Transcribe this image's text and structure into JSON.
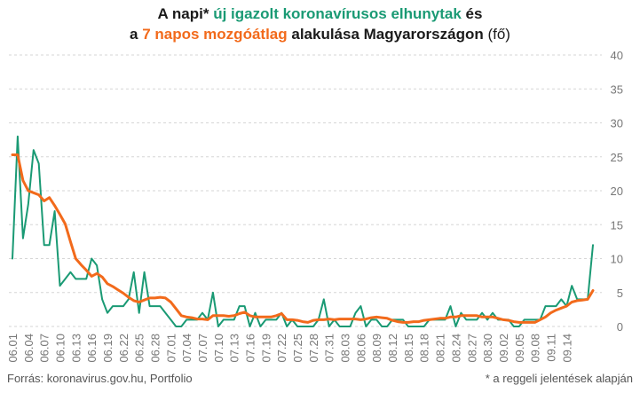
{
  "title": {
    "line1_a": "A napi* ",
    "line1_b": "új igazolt koronavírusos elhunytak",
    "line1_c": " és",
    "line2_a": "a ",
    "line2_b": "7 napos mozgóátlag",
    "line2_c": " alakulása Magyarországon ",
    "line2_d": "(fő)"
  },
  "footer": {
    "source": "Forrás: koronavirus.gov.hu, Portfolio",
    "note": "* a reggeli jelentések alapján"
  },
  "colors": {
    "daily": "#1a9a74",
    "average": "#f26a1b",
    "grid": "#d6d6d6",
    "tick": "#777777"
  },
  "chart_data": {
    "type": "line",
    "ylim": [
      0,
      40
    ],
    "yticks": [
      0,
      5,
      10,
      15,
      20,
      25,
      30,
      35,
      40
    ],
    "y_axis_position": "right",
    "grid": true,
    "x_tick_labels": [
      "06.01",
      "06.04",
      "06.07",
      "06.10",
      "06.13",
      "06.16",
      "06.19",
      "06.22",
      "06.25",
      "06.28",
      "07.01",
      "07.04",
      "07.07",
      "07.10",
      "07.13",
      "07.16",
      "07.19",
      "07.22",
      "07.25",
      "07.28",
      "07.31",
      "08.03",
      "08.06",
      "08.09",
      "08.12",
      "08.15",
      "08.18",
      "08.21",
      "08.24",
      "08.27",
      "08.30",
      "09.02",
      "09.05",
      "09.08",
      "09.11",
      "09.14"
    ],
    "series": [
      {
        "key": "daily",
        "values": [
          10,
          28,
          13,
          18,
          26,
          24,
          12,
          12,
          17,
          6,
          7,
          8,
          7,
          7,
          7,
          10,
          9,
          4,
          2,
          3,
          3,
          3,
          4,
          8,
          2,
          8,
          3,
          3,
          3,
          2,
          1,
          0,
          0,
          1,
          1,
          1,
          2,
          1,
          5,
          0,
          1,
          1,
          1,
          3,
          3,
          0,
          2,
          0,
          1,
          1,
          1,
          2,
          0,
          1,
          0,
          0,
          0,
          0,
          1,
          4,
          0,
          1,
          0,
          0,
          0,
          2,
          3,
          0,
          1,
          1,
          0,
          0,
          1,
          1,
          1,
          0,
          0,
          0,
          0,
          1,
          1,
          1,
          1,
          3,
          0,
          2,
          1,
          1,
          1,
          2,
          1,
          2,
          1,
          1,
          1,
          0,
          0,
          1,
          1,
          1,
          1,
          3,
          3,
          3,
          4,
          3,
          6,
          4,
          4,
          4,
          12
        ]
      },
      {
        "key": "average",
        "values": [
          25.3,
          25.3,
          21.5,
          20.0,
          19.7,
          19.4,
          18.5,
          19.0,
          17.8,
          16.5,
          15.1,
          12.5,
          10.0,
          9.1,
          8.3,
          7.4,
          7.8,
          7.3,
          6.3,
          5.9,
          5.4,
          4.9,
          4.3,
          3.8,
          3.6,
          3.9,
          4.2,
          4.2,
          4.3,
          4.2,
          3.6,
          2.6,
          1.6,
          1.4,
          1.3,
          1.1,
          1.1,
          1.0,
          1.6,
          1.6,
          1.6,
          1.5,
          1.6,
          1.9,
          2.1,
          1.6,
          1.4,
          1.4,
          1.4,
          1.4,
          1.6,
          1.9,
          1.0,
          1.0,
          0.9,
          0.7,
          0.6,
          0.9,
          1.0,
          1.0,
          1.1,
          1.0,
          1.1,
          1.1,
          1.1,
          1.1,
          1.0,
          1.1,
          1.3,
          1.4,
          1.3,
          1.2,
          0.9,
          0.7,
          0.6,
          0.6,
          0.7,
          0.7,
          0.9,
          1.0,
          1.1,
          1.2,
          1.2,
          1.4,
          1.4,
          1.6,
          1.6,
          1.6,
          1.6,
          1.4,
          1.4,
          1.4,
          1.2,
          1.0,
          0.9,
          0.7,
          0.6,
          0.6,
          0.6,
          0.6,
          1.0,
          1.4,
          2.0,
          2.4,
          2.7,
          3.0,
          3.6,
          3.8,
          3.9,
          4.0,
          5.3
        ]
      }
    ]
  }
}
